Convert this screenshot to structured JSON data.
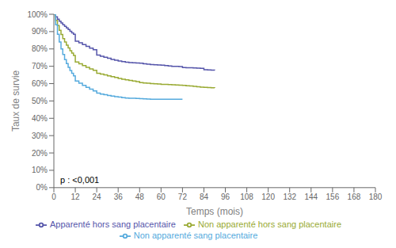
{
  "chart_data": {
    "type": "line",
    "line_style": "step",
    "xlabel": "Temps (mois)",
    "ylabel": "Taux de survie",
    "annotation": "p : <0,001",
    "xlim": [
      0,
      180
    ],
    "ylim": [
      0.0,
      1.0
    ],
    "xticks": [
      0,
      12,
      24,
      36,
      48,
      60,
      72,
      84,
      96,
      108,
      120,
      132,
      144,
      156,
      168,
      180
    ],
    "yticks": [
      {
        "value": 0.0,
        "label": "0%"
      },
      {
        "value": 0.1,
        "label": "10%"
      },
      {
        "value": 0.2,
        "label": "20%"
      },
      {
        "value": 0.3,
        "label": "30%"
      },
      {
        "value": 0.4,
        "label": "40%"
      },
      {
        "value": 0.5,
        "label": "50%"
      },
      {
        "value": 0.6,
        "label": "60%"
      },
      {
        "value": 0.7,
        "label": "70%"
      },
      {
        "value": 0.8,
        "label": "80%"
      },
      {
        "value": 0.9,
        "label": "90%"
      },
      {
        "value": 1.0,
        "label": "100%"
      }
    ],
    "grid": false,
    "legend": "bottom",
    "series": [
      {
        "name": "Apparenté hors sang placentaire",
        "color": "#5555aa",
        "x": [
          0,
          1,
          2,
          3,
          4,
          5,
          6,
          7,
          8,
          9,
          10,
          11,
          12,
          14,
          16,
          18,
          20,
          22,
          24,
          26,
          28,
          30,
          32,
          34,
          36,
          38,
          40,
          42,
          44,
          46,
          48,
          50,
          52,
          54,
          56,
          58,
          60,
          62,
          64,
          66,
          68,
          70,
          72,
          74,
          76,
          78,
          80,
          82,
          84,
          86,
          88,
          90
        ],
        "values": [
          1.0,
          0.985,
          0.972,
          0.96,
          0.95,
          0.94,
          0.93,
          0.921,
          0.912,
          0.902,
          0.893,
          0.885,
          0.845,
          0.835,
          0.825,
          0.815,
          0.805,
          0.795,
          0.765,
          0.758,
          0.752,
          0.746,
          0.74,
          0.735,
          0.73,
          0.727,
          0.724,
          0.721,
          0.72,
          0.719,
          0.718,
          0.714,
          0.712,
          0.71,
          0.709,
          0.708,
          0.706,
          0.704,
          0.702,
          0.7,
          0.699,
          0.698,
          0.693,
          0.692,
          0.691,
          0.69,
          0.689,
          0.688,
          0.68,
          0.679,
          0.678,
          0.677
        ]
      },
      {
        "name": "Non apparenté hors sang placentaire",
        "color": "#99aa33",
        "x": [
          0,
          1,
          2,
          3,
          4,
          5,
          6,
          7,
          8,
          9,
          10,
          11,
          12,
          14,
          16,
          18,
          20,
          22,
          24,
          26,
          28,
          30,
          32,
          34,
          36,
          38,
          40,
          42,
          44,
          46,
          48,
          50,
          52,
          54,
          56,
          58,
          60,
          62,
          64,
          66,
          68,
          70,
          72,
          74,
          76,
          78,
          80,
          82,
          84,
          86,
          88,
          90
        ],
        "values": [
          1.0,
          0.965,
          0.935,
          0.908,
          0.883,
          0.86,
          0.84,
          0.822,
          0.806,
          0.79,
          0.776,
          0.762,
          0.725,
          0.714,
          0.704,
          0.694,
          0.685,
          0.677,
          0.66,
          0.655,
          0.65,
          0.645,
          0.64,
          0.635,
          0.63,
          0.625,
          0.622,
          0.618,
          0.615,
          0.612,
          0.606,
          0.604,
          0.602,
          0.6,
          0.599,
          0.598,
          0.596,
          0.595,
          0.594,
          0.593,
          0.592,
          0.591,
          0.59,
          0.588,
          0.586,
          0.584,
          0.582,
          0.58,
          0.578,
          0.577,
          0.576,
          0.575
        ]
      },
      {
        "name": "Non apparenté sang placentaire",
        "color": "#55aadd",
        "x": [
          0,
          1,
          2,
          3,
          4,
          5,
          6,
          7,
          8,
          9,
          10,
          11,
          12,
          14,
          16,
          18,
          20,
          22,
          24,
          26,
          28,
          30,
          32,
          34,
          36,
          38,
          40,
          42,
          44,
          46,
          48,
          50,
          52,
          54,
          56,
          58,
          60,
          62,
          64,
          66,
          68,
          70,
          72
        ],
        "values": [
          1.0,
          0.94,
          0.885,
          0.84,
          0.8,
          0.768,
          0.738,
          0.715,
          0.694,
          0.676,
          0.66,
          0.645,
          0.615,
          0.602,
          0.59,
          0.578,
          0.568,
          0.558,
          0.545,
          0.54,
          0.536,
          0.532,
          0.528,
          0.525,
          0.522,
          0.519,
          0.517,
          0.516,
          0.515,
          0.514,
          0.513,
          0.512,
          0.511,
          0.51,
          0.51,
          0.51,
          0.51,
          0.51,
          0.51,
          0.51,
          0.51,
          0.51,
          0.51
        ]
      }
    ]
  }
}
